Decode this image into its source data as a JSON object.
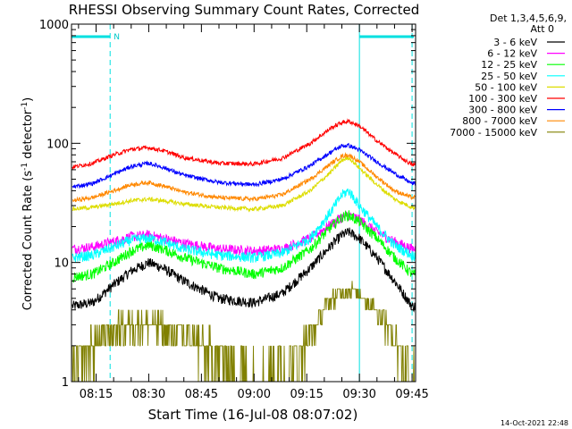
{
  "chart_data": {
    "type": "line",
    "title": "RHESSI Observing Summary Count Rates, Corrected",
    "xlabel": "Start Time (16-Jul-08 08:07:02)",
    "ylabel_main": "Corrected Count Rate (s",
    "ylabel_sup1": "-1",
    "ylabel_mid": " detector",
    "ylabel_sup2": "-1",
    "ylabel_end": ")",
    "yscale": "log",
    "ylim": [
      1,
      1000
    ],
    "xlim_minutes": [
      488,
      586
    ],
    "y_ticks": [
      {
        "value": 1,
        "label": "1"
      },
      {
        "value": 10,
        "label": "10"
      },
      {
        "value": 100,
        "label": "100"
      },
      {
        "value": 1000,
        "label": "1000"
      }
    ],
    "x_ticks": [
      {
        "minute": 495,
        "label": "08:15"
      },
      {
        "minute": 510,
        "label": "08:30"
      },
      {
        "minute": 525,
        "label": "08:45"
      },
      {
        "minute": 540,
        "label": "09:00"
      },
      {
        "minute": 555,
        "label": "09:15"
      },
      {
        "minute": 570,
        "label": "09:30"
      },
      {
        "minute": 585,
        "label": "09:45"
      }
    ],
    "legend_header": [
      "Det 1,3,4,5,6,9,",
      "Att 0"
    ],
    "series": [
      {
        "name": "3 - 6 keV",
        "color": "#000000",
        "minutes": [
          488,
          494,
          500,
          505,
          510,
          514,
          520,
          530,
          540,
          548,
          556,
          562,
          565,
          567,
          570,
          575,
          580,
          585
        ],
        "values": [
          4.3,
          4.6,
          6.5,
          8.5,
          10,
          9,
          7,
          5,
          4.6,
          5.5,
          9,
          14,
          17,
          18,
          16,
          11,
          7,
          4.3
        ]
      },
      {
        "name": "6 - 12 keV",
        "color": "#ff00ff",
        "minutes": [
          488,
          494,
          500,
          505,
          510,
          514,
          520,
          530,
          540,
          548,
          556,
          562,
          565,
          567,
          570,
          575,
          580,
          585
        ],
        "values": [
          13,
          13.5,
          15,
          16.5,
          17,
          16,
          14.5,
          13,
          12.5,
          13,
          16,
          21,
          24,
          25,
          23,
          18,
          15,
          13
        ]
      },
      {
        "name": "12 - 25 keV",
        "color": "#00ff00",
        "minutes": [
          488,
          494,
          500,
          505,
          510,
          514,
          520,
          530,
          540,
          548,
          556,
          562,
          565,
          567,
          570,
          575,
          580,
          585
        ],
        "values": [
          7.5,
          8,
          10,
          12.5,
          14,
          13,
          11,
          9,
          8,
          9,
          13,
          20,
          24,
          25,
          22,
          16,
          11,
          8
        ]
      },
      {
        "name": "25 - 50 keV",
        "color": "#00ffff",
        "minutes": [
          488,
          494,
          500,
          505,
          510,
          514,
          520,
          530,
          540,
          548,
          556,
          562,
          565,
          567,
          570,
          575,
          580,
          585
        ],
        "values": [
          11,
          11.5,
          13.5,
          15.5,
          16,
          15,
          13,
          11.5,
          11,
          12,
          16,
          27,
          37,
          40,
          30,
          20,
          14,
          11.5
        ]
      },
      {
        "name": "50 - 100 keV",
        "color": "#dddd00",
        "minutes": [
          488,
          494,
          500,
          505,
          510,
          514,
          520,
          530,
          540,
          548,
          556,
          562,
          565,
          567,
          570,
          575,
          580,
          585
        ],
        "values": [
          28,
          29,
          31,
          33,
          34,
          33,
          31,
          29,
          28,
          30,
          40,
          58,
          72,
          76,
          62,
          45,
          34,
          29
        ]
      },
      {
        "name": "100 - 300 keV",
        "color": "#ff0000",
        "minutes": [
          488,
          494,
          500,
          505,
          510,
          514,
          520,
          530,
          540,
          548,
          556,
          562,
          565,
          567,
          570,
          575,
          580,
          585
        ],
        "values": [
          63,
          68,
          80,
          89,
          92,
          87,
          76,
          68,
          67,
          75,
          100,
          135,
          150,
          153,
          140,
          105,
          82,
          66
        ]
      },
      {
        "name": "300 - 800 keV",
        "color": "#0000ff",
        "minutes": [
          488,
          494,
          500,
          505,
          510,
          514,
          520,
          530,
          540,
          548,
          556,
          562,
          565,
          567,
          570,
          575,
          580,
          585
        ],
        "values": [
          43,
          46,
          55,
          64,
          68,
          63,
          54,
          47,
          45,
          50,
          65,
          85,
          95,
          96,
          88,
          70,
          56,
          46
        ]
      },
      {
        "name": "800 - 7000 keV",
        "color": "#ff8800",
        "minutes": [
          488,
          494,
          500,
          505,
          510,
          514,
          520,
          530,
          540,
          548,
          556,
          562,
          565,
          567,
          570,
          575,
          580,
          585
        ],
        "values": [
          33,
          35,
          40,
          45,
          47,
          44,
          39,
          35,
          34,
          37,
          50,
          68,
          78,
          80,
          70,
          52,
          40,
          35
        ]
      },
      {
        "name": "7000 - 15000 keV",
        "color": "#808000",
        "minutes": [
          488,
          492,
          496,
          500,
          505,
          510,
          515,
          520,
          525,
          530,
          535,
          540,
          545,
          550,
          555,
          560,
          564,
          567,
          570,
          574,
          578,
          582,
          585
        ],
        "values": [
          1,
          1.8,
          2.3,
          2.8,
          3,
          3,
          2.8,
          2.5,
          2,
          1.6,
          1.3,
          1.1,
          1.1,
          1.4,
          2.2,
          4,
          5.5,
          6,
          5.6,
          4.2,
          3,
          1.8,
          1.1
        ]
      }
    ],
    "attenuator_bars": [
      {
        "start_minute": 488,
        "end_minute": 499,
        "label": "N"
      },
      {
        "start_minute": 570,
        "end_minute": 586,
        "label": ""
      }
    ],
    "vertical_lines_dashed": [
      499,
      585
    ],
    "vertical_lines_solid": [
      488,
      570
    ],
    "footer_date": "14-Oct-2021 22:48"
  }
}
